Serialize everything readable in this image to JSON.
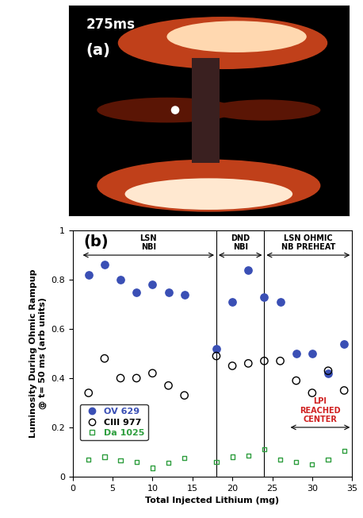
{
  "image_panel": {
    "label": "(a)",
    "time_label": "275ms"
  },
  "chart_data": {
    "type": "scatter",
    "panel_label": "(b)",
    "x_label": "Total Injected Lithium (mg)",
    "y_label": "Luminosity During Ohmic Rampup\n@ t= 50 ms (arb units)",
    "xlim": [
      0,
      35
    ],
    "xticks": [
      0,
      5,
      10,
      15,
      20,
      25,
      30,
      35
    ],
    "ylim": [
      0,
      1
    ],
    "yticks": [
      0,
      0.2,
      0.4,
      0.6,
      0.8,
      1
    ],
    "legend": "center left",
    "dividers": [
      18,
      24
    ],
    "regions": [
      {
        "label": "LSN\nNBI",
        "x": [
          1,
          18
        ]
      },
      {
        "label": "DND\nNBI",
        "x": [
          18,
          24
        ]
      },
      {
        "label": "LSN OHMIC\nNB PREHEAT",
        "x": [
          24,
          35
        ]
      }
    ],
    "annotations": [
      {
        "text": "LPI\nREACHED\nCENTER",
        "x": [
          27,
          35
        ]
      }
    ],
    "series": [
      {
        "name": "OV 629",
        "color": "#3a4fb5",
        "marker": "filled_circle",
        "x": [
          2,
          4,
          6,
          8,
          10,
          12,
          14,
          18,
          20,
          22,
          24,
          26,
          28,
          30,
          32,
          34
        ],
        "values": [
          0.82,
          0.86,
          0.8,
          0.75,
          0.78,
          0.75,
          0.74,
          0.52,
          0.71,
          0.84,
          0.73,
          0.71,
          0.5,
          0.5,
          0.42,
          0.54
        ]
      },
      {
        "name": "CIII 977",
        "color": "#000000",
        "marker": "open_circle",
        "x": [
          2,
          4,
          6,
          8,
          10,
          12,
          14,
          18,
          20,
          22,
          24,
          26,
          28,
          30,
          32,
          34
        ],
        "values": [
          0.34,
          0.48,
          0.4,
          0.4,
          0.42,
          0.37,
          0.33,
          0.49,
          0.45,
          0.46,
          0.47,
          0.47,
          0.39,
          0.34,
          0.43,
          0.35
        ]
      },
      {
        "name": "Da 1025",
        "color": "#2e9e3e",
        "marker": "open_square",
        "x": [
          2,
          4,
          6,
          8,
          10,
          12,
          14,
          18,
          20,
          22,
          24,
          26,
          28,
          30,
          32,
          34
        ],
        "values": [
          0.07,
          0.08,
          0.065,
          0.06,
          0.035,
          0.055,
          0.075,
          0.06,
          0.08,
          0.085,
          0.11,
          0.07,
          0.06,
          0.05,
          0.07,
          0.105
        ]
      }
    ]
  }
}
